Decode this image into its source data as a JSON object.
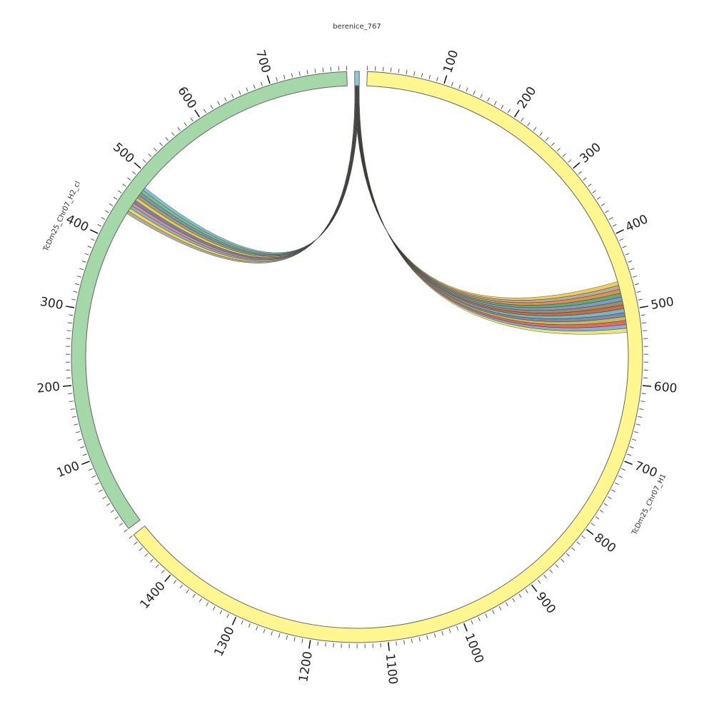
{
  "chart_data": {
    "type": "circos",
    "segments": [
      {
        "name": "berenice_767",
        "length": 6,
        "color": "#8ec6e0",
        "ticks": []
      },
      {
        "name": "TcDm25_Chr07_H1",
        "length": 1470,
        "color": "#fff68f",
        "ticks": [
          100,
          200,
          300,
          400,
          500,
          600,
          700,
          800,
          900,
          1000,
          1100,
          1200,
          1300,
          1400
        ]
      },
      {
        "name": "TcDm25_Chr07_H2_cl",
        "length": 800,
        "color": "#a4d8a8",
        "ticks": [
          100,
          200,
          300,
          400,
          500,
          600,
          700
        ]
      }
    ],
    "minor_tick_interval": 10,
    "links": [
      {
        "segment": 1,
        "start": 460,
        "end": 530,
        "colors": [
          "#f0c23c",
          "#a0a090",
          "#e07a30",
          "#4a9a5a",
          "#6a8ab8",
          "#8a7a50",
          "#c05030",
          "#5ab0b0",
          "#7070a0",
          "#b0b040",
          "#e05040",
          "#6fa0d0",
          "#e8e060"
        ]
      },
      {
        "segment": 2,
        "start": 441,
        "end": 484,
        "colors": [
          "#a0a090",
          "#f0d040",
          "#7aa0c0",
          "#c08080",
          "#6a6aa0",
          "#d8c840",
          "#9a8a60",
          "#5a8ab0",
          "#70b070",
          "#6fb5c8"
        ]
      }
    ]
  }
}
